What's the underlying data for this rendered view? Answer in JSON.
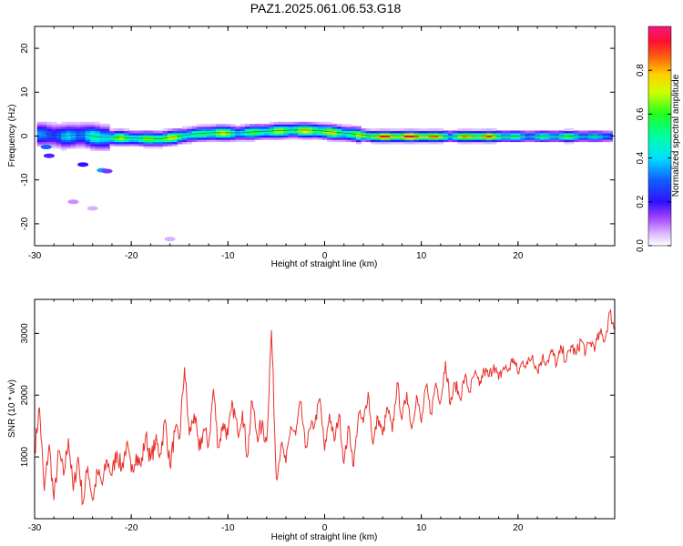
{
  "title": "PAZ1.2025.061.06.53.G18",
  "colors": {
    "background": "#ffffff",
    "axis": "#000000",
    "snr_line": "#e8302a"
  },
  "chart_data": [
    {
      "type": "heatmap",
      "title": "PAZ1.2025.061.06.53.G18",
      "xlabel": "Height of straight line (km)",
      "ylabel": "Frequency (Hz)",
      "xlim": [
        -30,
        30
      ],
      "ylim": [
        -25,
        25
      ],
      "x_ticks": [
        -30,
        -20,
        -10,
        0,
        10,
        20
      ],
      "y_ticks": [
        -20,
        -10,
        0,
        10,
        20
      ],
      "colorbar": {
        "label": "Normalized spectral amplitude",
        "range": [
          0,
          1
        ],
        "ticks": [
          0.0,
          0.2,
          0.4,
          0.6,
          0.8
        ],
        "colormap": "hsv (violet-blue-cyan-green-yellow-orange-red-pink)"
      },
      "ridge_trace": [
        {
          "x": -29,
          "f": 0.5,
          "a": 0.35
        },
        {
          "x": -27,
          "f": 0.0,
          "a": 0.4
        },
        {
          "x": -25,
          "f": 0.3,
          "a": 0.45
        },
        {
          "x": -23,
          "f": -0.3,
          "a": 0.55
        },
        {
          "x": -21,
          "f": -0.3,
          "a": 0.7
        },
        {
          "x": -19,
          "f": -0.5,
          "a": 0.6
        },
        {
          "x": -17,
          "f": -0.6,
          "a": 0.8
        },
        {
          "x": -15,
          "f": 0.0,
          "a": 0.7
        },
        {
          "x": -13,
          "f": 0.6,
          "a": 0.55
        },
        {
          "x": -11,
          "f": 0.8,
          "a": 0.82
        },
        {
          "x": -9,
          "f": 0.7,
          "a": 0.55
        },
        {
          "x": -7,
          "f": 1.0,
          "a": 0.65
        },
        {
          "x": -5,
          "f": 1.2,
          "a": 0.7
        },
        {
          "x": -3,
          "f": 1.4,
          "a": 0.75
        },
        {
          "x": -1,
          "f": 1.3,
          "a": 0.8
        },
        {
          "x": 1,
          "f": 0.9,
          "a": 0.75
        },
        {
          "x": 3,
          "f": 0.5,
          "a": 0.65
        },
        {
          "x": 5,
          "f": 0.0,
          "a": 0.9
        },
        {
          "x": 7,
          "f": 0.0,
          "a": 0.95
        },
        {
          "x": 9,
          "f": 0.0,
          "a": 0.98
        },
        {
          "x": 11,
          "f": 0.0,
          "a": 0.95
        },
        {
          "x": 13,
          "f": 0.0,
          "a": 0.6
        },
        {
          "x": 15,
          "f": 0.0,
          "a": 0.9
        },
        {
          "x": 17,
          "f": 0.0,
          "a": 0.9
        },
        {
          "x": 19,
          "f": 0.0,
          "a": 0.6
        },
        {
          "x": 21,
          "f": 0.0,
          "a": 0.5
        },
        {
          "x": 23,
          "f": 0.0,
          "a": 0.55
        },
        {
          "x": 25,
          "f": 0.0,
          "a": 0.65
        },
        {
          "x": 27,
          "f": 0.0,
          "a": 0.5
        },
        {
          "x": 29,
          "f": 0.0,
          "a": 0.45
        }
      ]
    },
    {
      "type": "line",
      "xlabel": "Height of straight line (km)",
      "ylabel": "SNR (10 * v/v)",
      "xlim": [
        -30,
        30
      ],
      "ylim": [
        0,
        3550
      ],
      "x_ticks": [
        -30,
        -20,
        -10,
        0,
        10,
        20
      ],
      "y_ticks": [
        1000,
        2000,
        3000
      ],
      "series": [
        {
          "x": [
            -30,
            -29.5,
            -29,
            -28.5,
            -28,
            -27.5,
            -27,
            -26.5,
            -26,
            -25.5,
            -25,
            -24.5,
            -24,
            -23.5,
            -23,
            -22.5,
            -22,
            -21.5,
            -21,
            -20.5,
            -20,
            -19.5,
            -19,
            -18.5,
            -18,
            -17.5,
            -17,
            -16.5,
            -16,
            -15.5,
            -15,
            -14.5,
            -14,
            -13.5,
            -13,
            -12.5,
            -12,
            -11.5,
            -11,
            -10.5,
            -10,
            -9.5,
            -9,
            -8.5,
            -8,
            -7.5,
            -7,
            -6.5,
            -6,
            -5.5,
            -5,
            -4.5,
            -4,
            -3.5,
            -3,
            -2.5,
            -2,
            -1.5,
            -1,
            -0.5,
            0,
            0.5,
            1,
            1.5,
            2,
            2.5,
            3,
            3.5,
            4,
            4.5,
            5,
            5.5,
            6,
            6.5,
            7,
            7.5,
            8,
            8.5,
            9,
            9.5,
            10,
            10.5,
            11,
            11.5,
            12,
            12.5,
            13,
            13.5,
            14,
            14.5,
            15,
            15.5,
            16,
            16.5,
            17,
            17.5,
            18,
            18.5,
            19,
            19.5,
            20,
            20.5,
            21,
            21.5,
            22,
            22.5,
            23,
            23.5,
            24,
            24.5,
            25,
            25.5,
            26,
            26.5,
            27,
            27.5,
            28,
            28.5,
            29,
            29.5,
            30
          ],
          "values": [
            1100,
            1800,
            450,
            1200,
            300,
            1100,
            700,
            1300,
            450,
            1000,
            250,
            850,
            300,
            750,
            550,
            950,
            700,
            1100,
            800,
            1200,
            750,
            1050,
            850,
            1350,
            950,
            1250,
            1050,
            1600,
            850,
            1400,
            1300,
            2450,
            1350,
            1700,
            1100,
            1450,
            1200,
            2100,
            1150,
            1550,
            1350,
            1850,
            1400,
            1750,
            1000,
            1900,
            1350,
            1500,
            1250,
            3050,
            650,
            1200,
            900,
            1500,
            1350,
            1900,
            1150,
            1450,
            1550,
            1950,
            1100,
            1700,
            1250,
            1700,
            900,
            1500,
            850,
            1700,
            1550,
            2050,
            1200,
            1650,
            1350,
            1800,
            1400,
            2200,
            1600,
            2050,
            1450,
            2000,
            1550,
            2150,
            1700,
            2200,
            1900,
            2550,
            1850,
            2200,
            1950,
            2300,
            2050,
            2350,
            2150,
            2400,
            2300,
            2500,
            2250,
            2450,
            2400,
            2600,
            2350,
            2550,
            2500,
            2650,
            2400,
            2600,
            2550,
            2700,
            2500,
            2750,
            2550,
            2800,
            2650,
            2900,
            2700,
            2850,
            2800,
            3000,
            2900,
            3350,
            3050
          ]
        }
      ]
    }
  ]
}
